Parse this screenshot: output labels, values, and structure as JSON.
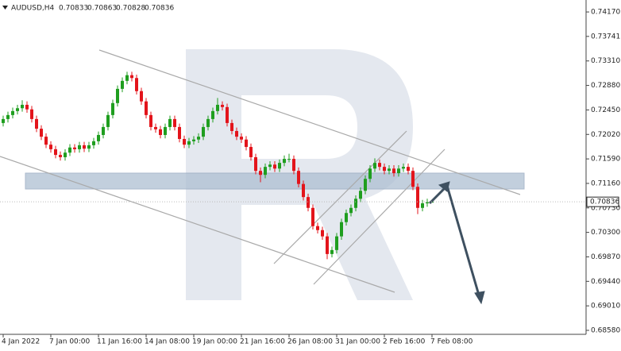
{
  "chart_data": {
    "type": "candlestick",
    "title": "AUDUSD,H4",
    "categories": [
      "4 Jan 2022",
      null,
      null,
      null,
      null,
      null,
      null,
      null,
      null,
      null,
      "7 Jan 00:00",
      null,
      null,
      null,
      null,
      null,
      null,
      null,
      null,
      null,
      "11 Jan 16:00",
      null,
      null,
      null,
      null,
      null,
      null,
      null,
      null,
      null,
      "14 Jan 08:00",
      null,
      null,
      null,
      null,
      null,
      null,
      null,
      null,
      null,
      "19 Jan 00:00",
      null,
      null,
      null,
      null,
      null,
      null,
      null,
      null,
      null,
      "21 Jan 16:00",
      null,
      null,
      null,
      null,
      null,
      null,
      null,
      null,
      null,
      "26 Jan 08:00",
      null,
      null,
      null,
      null,
      null,
      null,
      null,
      null,
      null,
      "31 Jan 00:00",
      null,
      null,
      null,
      null,
      null,
      null,
      null,
      null,
      null,
      "2 Feb 16:00",
      null,
      null,
      null,
      null,
      null,
      null,
      null,
      null,
      null,
      "7 Feb 08:00"
    ],
    "open": [
      0.7222,
      0.7229,
      0.7236,
      0.7243,
      0.7248,
      0.7254,
      0.7246,
      0.7229,
      0.7212,
      0.7198,
      0.7184,
      0.7176,
      0.7166,
      0.7162,
      0.717,
      0.7179,
      0.7176,
      0.7183,
      0.7177,
      0.7183,
      0.719,
      0.7201,
      0.7215,
      0.7236,
      0.7257,
      0.7282,
      0.7296,
      0.7306,
      0.7301,
      0.7278,
      0.726,
      0.7236,
      0.7215,
      0.7211,
      0.7201,
      0.7215,
      0.7229,
      0.7215,
      0.7194,
      0.7184,
      0.719,
      0.7193,
      0.7198,
      0.7215,
      0.7229,
      0.7243,
      0.7254,
      0.725,
      0.7222,
      0.7208,
      0.7198,
      0.7193,
      0.718,
      0.7162,
      0.7138,
      0.7131,
      0.7145,
      0.7149,
      0.7142,
      0.7152,
      0.7159,
      0.7159,
      0.7138,
      0.7115,
      0.7092,
      0.7073,
      0.7041,
      0.7034,
      0.7023,
      0.6992,
      0.6999,
      0.7023,
      0.7048,
      0.7064,
      0.7073,
      0.7089,
      0.7103,
      0.7124,
      0.7142,
      0.7152,
      0.7145,
      0.7138,
      0.7142,
      0.7134,
      0.7142,
      0.7145,
      0.7138,
      0.711,
      0.7073,
      0.7081,
      0.70833
    ],
    "high": [
      0.7235,
      0.7242,
      0.7249,
      0.7254,
      0.7262,
      0.726,
      0.7252,
      0.7235,
      0.7218,
      0.7204,
      0.719,
      0.7182,
      0.7172,
      0.7176,
      0.7185,
      0.7185,
      0.7189,
      0.7189,
      0.7189,
      0.7196,
      0.7207,
      0.7221,
      0.7242,
      0.7263,
      0.7288,
      0.7302,
      0.7312,
      0.7312,
      0.7307,
      0.7284,
      0.7266,
      0.7242,
      0.7221,
      0.7217,
      0.7221,
      0.7235,
      0.7235,
      0.7221,
      0.72,
      0.7196,
      0.7199,
      0.7204,
      0.7221,
      0.7235,
      0.7249,
      0.7266,
      0.726,
      0.7256,
      0.7228,
      0.7214,
      0.7204,
      0.7199,
      0.7186,
      0.7168,
      0.7144,
      0.7151,
      0.7155,
      0.7155,
      0.7158,
      0.7165,
      0.7168,
      0.7165,
      0.7144,
      0.7121,
      0.7098,
      0.7079,
      0.7047,
      0.704,
      0.7029,
      0.7005,
      0.7029,
      0.7054,
      0.707,
      0.7079,
      0.7095,
      0.7109,
      0.713,
      0.7148,
      0.716,
      0.7158,
      0.7151,
      0.7148,
      0.7148,
      0.7148,
      0.7151,
      0.7151,
      0.7144,
      0.7116,
      0.7087,
      0.7089,
      0.70863
    ],
    "low": [
      0.7216,
      0.7223,
      0.723,
      0.7237,
      0.7242,
      0.724,
      0.7223,
      0.7206,
      0.7192,
      0.7178,
      0.717,
      0.716,
      0.7156,
      0.7156,
      0.7164,
      0.717,
      0.717,
      0.7171,
      0.7171,
      0.7177,
      0.7184,
      0.7195,
      0.7209,
      0.723,
      0.7251,
      0.7276,
      0.729,
      0.7295,
      0.7272,
      0.7254,
      0.723,
      0.7209,
      0.7205,
      0.7195,
      0.7195,
      0.7209,
      0.7209,
      0.7188,
      0.7178,
      0.7178,
      0.7184,
      0.7187,
      0.7192,
      0.7209,
      0.7223,
      0.7237,
      0.7244,
      0.7216,
      0.7202,
      0.7192,
      0.7187,
      0.7174,
      0.7156,
      0.7132,
      0.7118,
      0.7125,
      0.7139,
      0.7136,
      0.7136,
      0.7146,
      0.7153,
      0.7132,
      0.7109,
      0.7086,
      0.7067,
      0.7035,
      0.7028,
      0.7017,
      0.6983,
      0.6986,
      0.6993,
      0.7017,
      0.7042,
      0.7058,
      0.7067,
      0.7083,
      0.7097,
      0.7118,
      0.7136,
      0.7139,
      0.7132,
      0.7132,
      0.7128,
      0.7128,
      0.7136,
      0.7132,
      0.7104,
      0.7062,
      0.7067,
      0.7075,
      0.70828
    ],
    "close": [
      0.7229,
      0.7236,
      0.7243,
      0.7248,
      0.7254,
      0.7246,
      0.7229,
      0.7212,
      0.7198,
      0.7184,
      0.7176,
      0.7166,
      0.7162,
      0.717,
      0.7179,
      0.7176,
      0.7183,
      0.7177,
      0.7183,
      0.719,
      0.7201,
      0.7215,
      0.7236,
      0.7257,
      0.7282,
      0.7296,
      0.7306,
      0.7301,
      0.7278,
      0.726,
      0.7236,
      0.7215,
      0.7211,
      0.7201,
      0.7215,
      0.7229,
      0.7215,
      0.7194,
      0.7184,
      0.719,
      0.7193,
      0.7198,
      0.7215,
      0.7229,
      0.7243,
      0.7254,
      0.725,
      0.7222,
      0.7208,
      0.7198,
      0.7193,
      0.718,
      0.7162,
      0.7138,
      0.7131,
      0.7145,
      0.7149,
      0.7142,
      0.7152,
      0.7159,
      0.7159,
      0.7138,
      0.7115,
      0.7092,
      0.7073,
      0.7041,
      0.7034,
      0.7023,
      0.6992,
      0.6999,
      0.7023,
      0.7048,
      0.7064,
      0.7073,
      0.7089,
      0.7103,
      0.7124,
      0.7142,
      0.7152,
      0.7145,
      0.7138,
      0.7142,
      0.7134,
      0.7142,
      0.7145,
      0.7138,
      0.711,
      0.7073,
      0.7081,
      0.7083,
      0.70836
    ],
    "up_color": "#1f9e1f",
    "down_color": "#e3141b",
    "ylim": [
      0.6851,
      0.7438
    ],
    "yticks": [
      {
        "value": 0.7417,
        "label": "0.74170"
      },
      0.73741,
      {
        "value": 0.7331,
        "label": "0.73310"
      },
      {
        "value": 0.7288,
        "label": "0.72880"
      },
      {
        "value": 0.7245,
        "label": "0.72450"
      },
      {
        "value": 0.7202,
        "label": "0.72020"
      },
      {
        "value": 0.7159,
        "label": "0.71590"
      },
      {
        "value": 0.7116,
        "label": "0.71160"
      },
      {
        "value": 0.7073,
        "label": "0.70730"
      },
      {
        "value": 0.703,
        "label": "0.70300"
      },
      {
        "value": 0.6987,
        "label": "0.69870"
      },
      {
        "value": 0.6944,
        "label": "0.69440"
      },
      {
        "value": 0.6901,
        "label": "0.69010"
      },
      {
        "value": 0.6858,
        "label": "0.68580"
      }
    ],
    "grid": false
  }
}
